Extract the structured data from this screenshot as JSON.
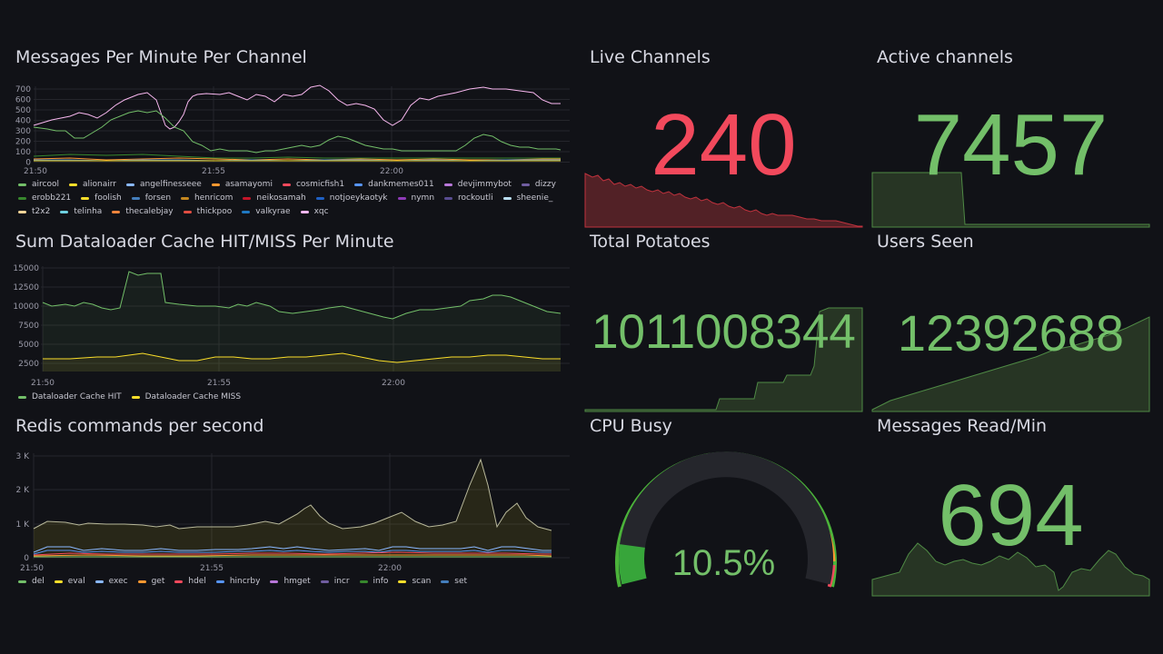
{
  "colors": {
    "green": "#73bf69",
    "red": "#f2495c",
    "yellow": "#fade2a",
    "orange": "#ff9830"
  },
  "messages_panel": {
    "title": "Messages Per Minute Per Channel",
    "y_ticks": [
      "700",
      "600",
      "500",
      "400",
      "300",
      "200",
      "100",
      "0"
    ],
    "x_ticks": [
      "21:50",
      "21:55",
      "22:00"
    ],
    "legend": [
      {
        "name": "aircool",
        "color": "#73bf69"
      },
      {
        "name": "alionairr",
        "color": "#fade2a"
      },
      {
        "name": "angelfinesseee",
        "color": "#8ab8ff"
      },
      {
        "name": "asamayomi",
        "color": "#ff9830"
      },
      {
        "name": "cosmicfish1",
        "color": "#f2495c"
      },
      {
        "name": "dankmemes011",
        "color": "#5794f2"
      },
      {
        "name": "devjimmybot",
        "color": "#b877d9"
      },
      {
        "name": "dizzy",
        "color": "#705da0"
      },
      {
        "name": "erobb221",
        "color": "#37872d"
      },
      {
        "name": "foolish",
        "color": "#fade2a"
      },
      {
        "name": "forsen",
        "color": "#447ebc"
      },
      {
        "name": "henricom",
        "color": "#c4871f"
      },
      {
        "name": "neikosamah",
        "color": "#c4162a"
      },
      {
        "name": "notjoeykaotyk",
        "color": "#1f60c4"
      },
      {
        "name": "nymn",
        "color": "#8f3bb8"
      },
      {
        "name": "rockoutli",
        "color": "#584c90"
      },
      {
        "name": "sheenie_",
        "color": "#badff4"
      },
      {
        "name": "t2x2",
        "color": "#f4d598"
      },
      {
        "name": "telinha",
        "color": "#6ed0e0"
      },
      {
        "name": "thecalebjay",
        "color": "#ef843c"
      },
      {
        "name": "thickpoo",
        "color": "#e24d42"
      },
      {
        "name": "valkyrae",
        "color": "#1f78c1"
      },
      {
        "name": "xqc",
        "color": "#f9b8f0"
      }
    ]
  },
  "dataloader_panel": {
    "title": "Sum Dataloader Cache HIT/MISS Per Minute",
    "y_ticks": [
      "15000",
      "12500",
      "10000",
      "7500",
      "5000",
      "2500"
    ],
    "x_ticks": [
      "21:50",
      "21:55",
      "22:00"
    ],
    "legend": [
      {
        "name": "Dataloader Cache HIT",
        "color": "#73bf69"
      },
      {
        "name": "Dataloader Cache MISS",
        "color": "#fade2a"
      }
    ]
  },
  "redis_panel": {
    "title": "Redis commands per second",
    "y_ticks": [
      "3 K",
      "2 K",
      "1 K",
      "0"
    ],
    "x_ticks": [
      "21:50",
      "21:55",
      "22:00"
    ],
    "legend": [
      {
        "name": "del",
        "color": "#73bf69"
      },
      {
        "name": "eval",
        "color": "#fade2a"
      },
      {
        "name": "exec",
        "color": "#8ab8ff"
      },
      {
        "name": "get",
        "color": "#ff9830"
      },
      {
        "name": "hdel",
        "color": "#f2495c"
      },
      {
        "name": "hincrby",
        "color": "#5794f2"
      },
      {
        "name": "hmget",
        "color": "#b877d9"
      },
      {
        "name": "incr",
        "color": "#705da0"
      },
      {
        "name": "info",
        "color": "#37872d"
      },
      {
        "name": "scan",
        "color": "#fade2a"
      },
      {
        "name": "set",
        "color": "#447ebc"
      }
    ]
  },
  "live_channels": {
    "title": "Live Channels",
    "value": "240"
  },
  "active_channels": {
    "title": "Active channels",
    "value": "7457"
  },
  "total_potatoes": {
    "title": "Total Potatoes",
    "value": "1011008344"
  },
  "users_seen": {
    "title": "Users Seen",
    "value": "12392688"
  },
  "cpu_busy": {
    "title": "CPU Busy",
    "value": "10.5%",
    "percent": 10.5
  },
  "messages_read": {
    "title": "Messages Read/Min",
    "value": "694"
  }
}
